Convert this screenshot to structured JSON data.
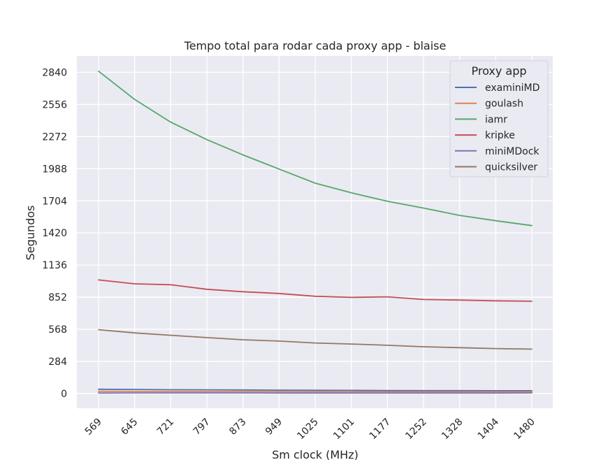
{
  "chart_data": {
    "type": "line",
    "title": "Tempo total para rodar cada proxy app - blaise",
    "xlabel": "Sm clock (MHz)",
    "ylabel": "Segundos",
    "categories": [
      "569",
      "645",
      "721",
      "797",
      "873",
      "949",
      "1025",
      "1101",
      "1177",
      "1252",
      "1328",
      "1404",
      "1480"
    ],
    "yticks": [
      "0",
      "284",
      "568",
      "852",
      "1136",
      "1420",
      "1704",
      "1988",
      "2272",
      "2556",
      "2840"
    ],
    "ylim": [
      -130,
      2985
    ],
    "grid": true,
    "legend": {
      "title": "Proxy app",
      "placement": "top-right"
    },
    "series": [
      {
        "name": "examiniMD",
        "color": "#4c72b0",
        "values": [
          38,
          36,
          34,
          33,
          32,
          30,
          29,
          28,
          27,
          26,
          26,
          25,
          25
        ]
      },
      {
        "name": "goulash",
        "color": "#dd8452",
        "values": [
          20,
          19,
          18,
          18,
          17,
          17,
          16,
          16,
          16,
          15,
          15,
          15,
          15
        ]
      },
      {
        "name": "iamr",
        "color": "#55a868",
        "values": [
          2850,
          2600,
          2400,
          2245,
          2110,
          1985,
          1860,
          1775,
          1700,
          1640,
          1575,
          1528,
          1485
        ]
      },
      {
        "name": "kripke",
        "color": "#c44e52",
        "values": [
          1005,
          970,
          962,
          922,
          900,
          885,
          860,
          850,
          855,
          832,
          827,
          820,
          816
        ]
      },
      {
        "name": "miniMDock",
        "color": "#8172b3",
        "values": [
          5,
          6,
          6,
          6,
          6,
          5,
          5,
          5,
          5,
          5,
          5,
          5,
          6
        ]
      },
      {
        "name": "quicksilver",
        "color": "#937860",
        "values": [
          565,
          536,
          515,
          495,
          476,
          464,
          447,
          438,
          427,
          414,
          406,
          398,
          393
        ]
      }
    ]
  }
}
